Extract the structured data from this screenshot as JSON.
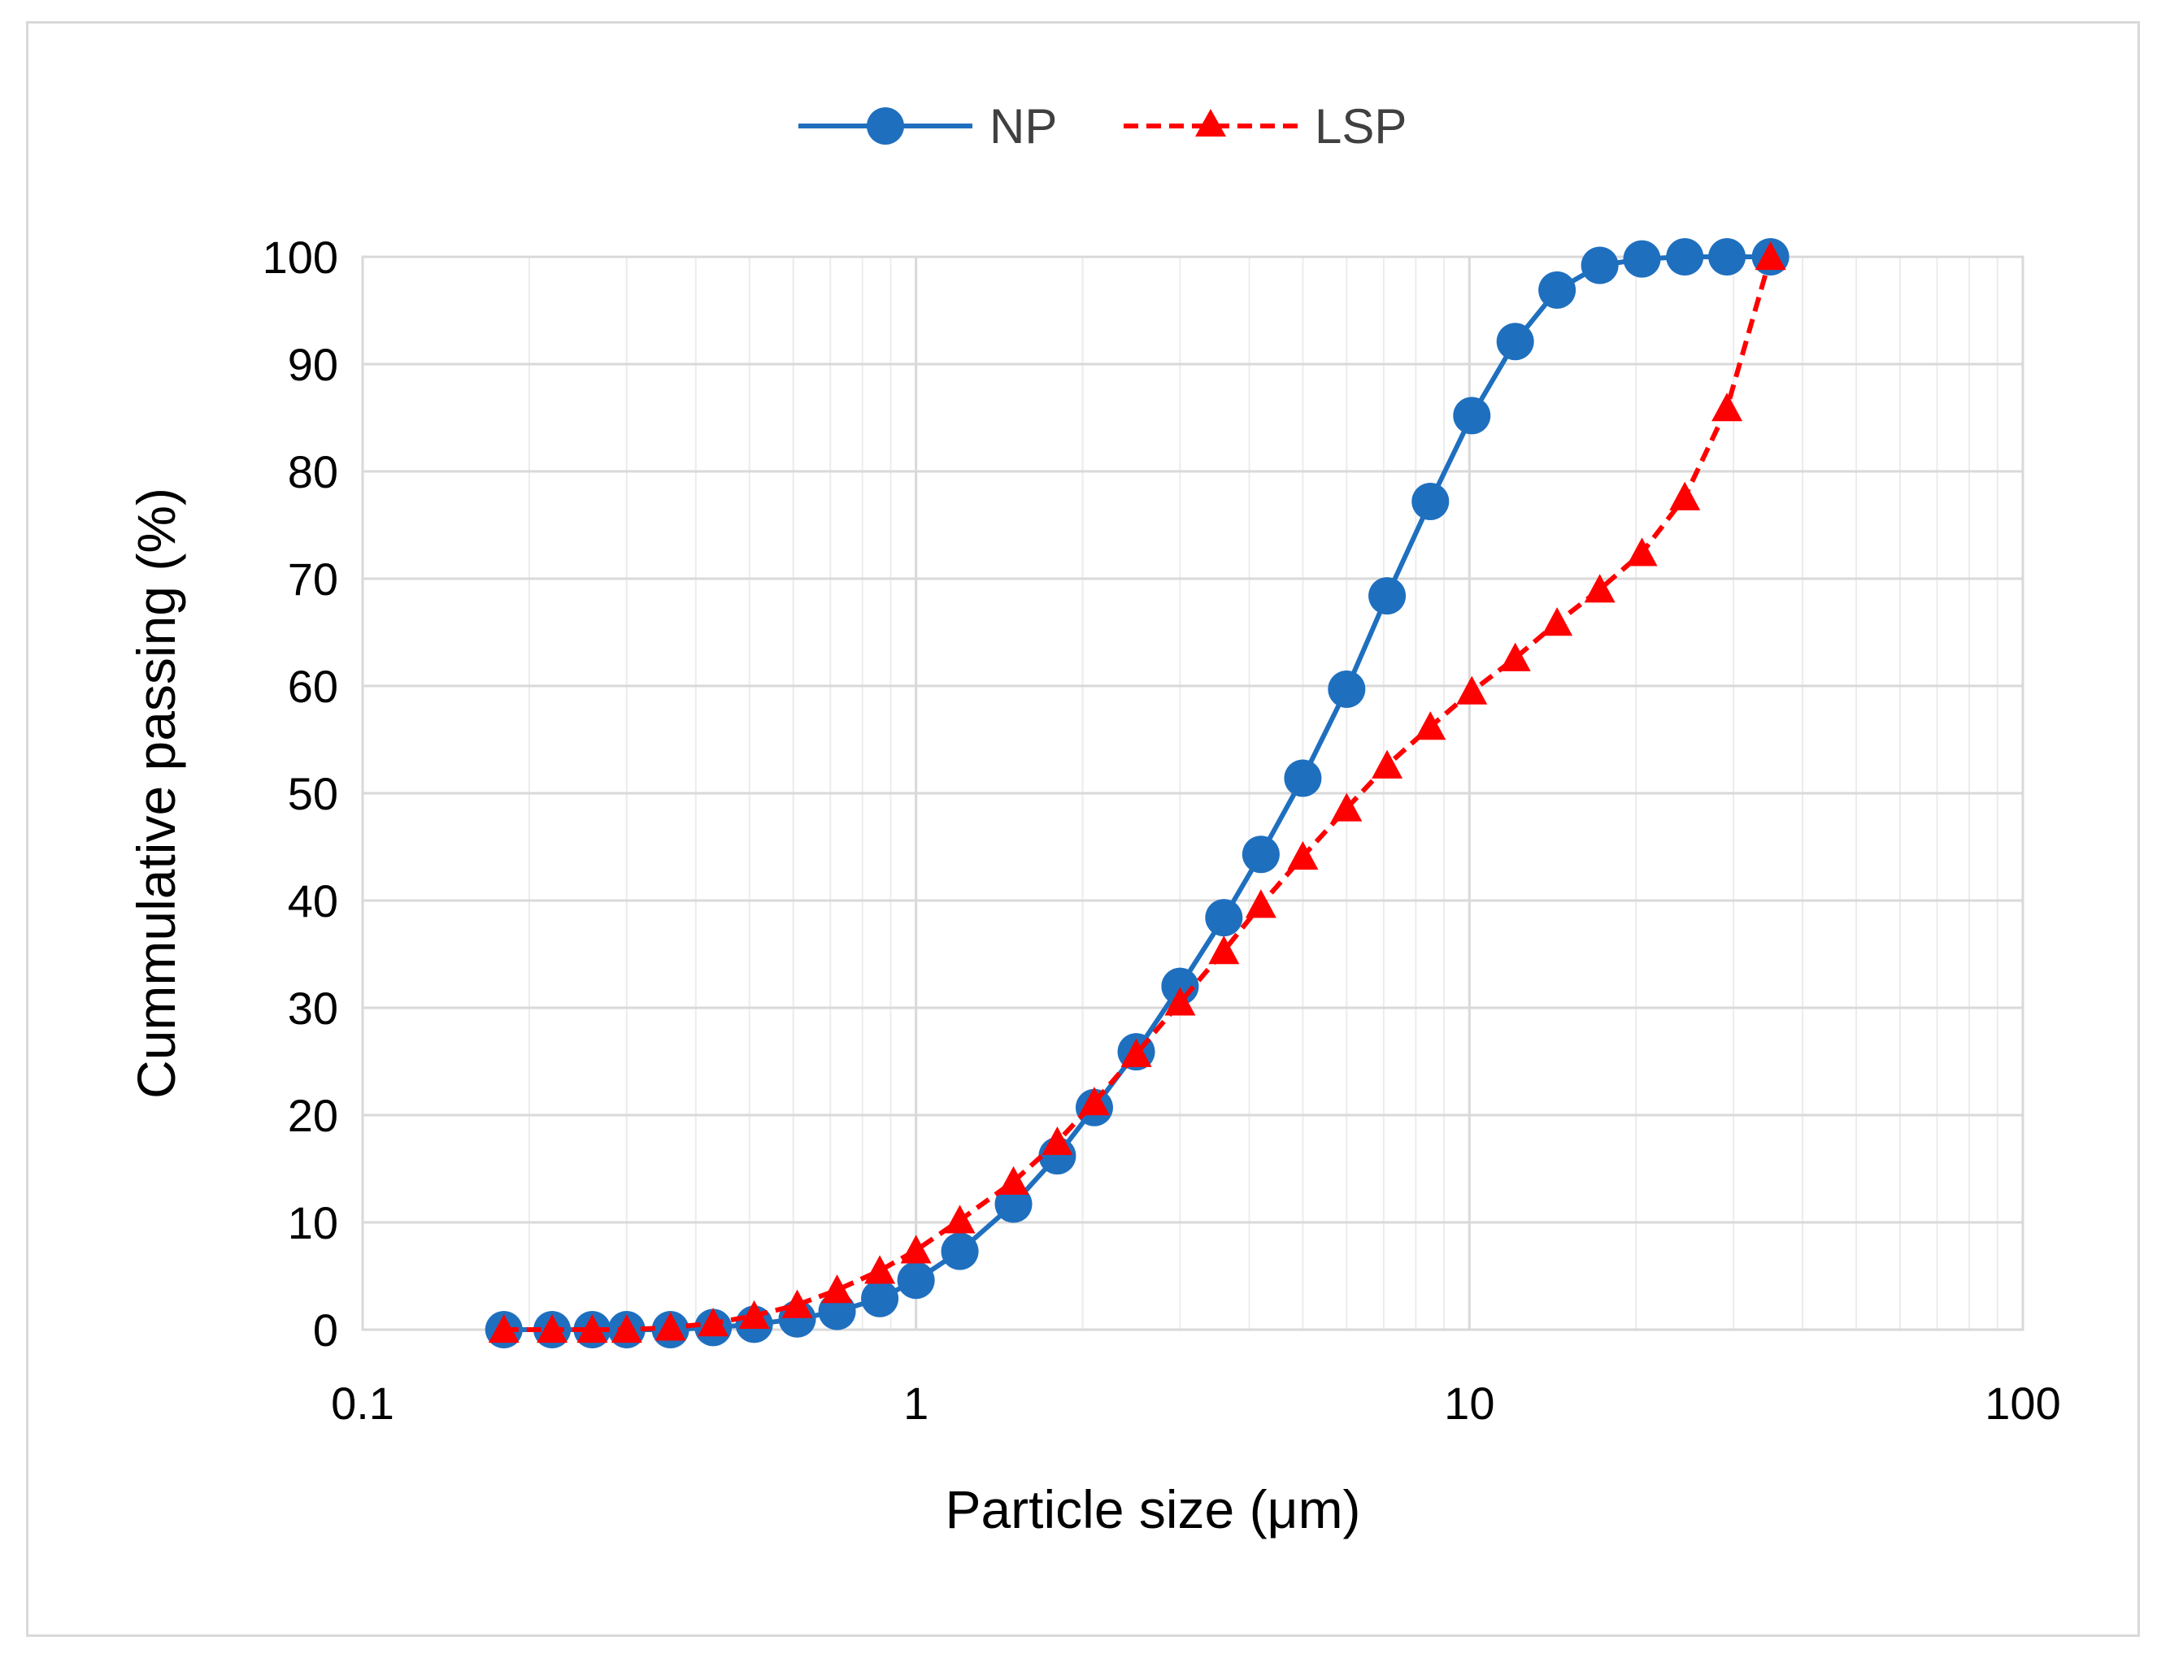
{
  "chart_data": {
    "type": "line",
    "title": "",
    "xlabel": "Particle size (μm)",
    "ylabel": "Cummulative passing (%)",
    "xscale": "log",
    "xlim": [
      0.1,
      100
    ],
    "ylim": [
      0,
      100
    ],
    "xticks": [
      0.1,
      1,
      10,
      100
    ],
    "xtick_labels": [
      "0.1",
      "1",
      "10",
      "100"
    ],
    "yticks": [
      0,
      10,
      20,
      30,
      40,
      50,
      60,
      70,
      80,
      90,
      100
    ],
    "ytick_labels": [
      "0",
      "10",
      "20",
      "30",
      "40",
      "50",
      "60",
      "70",
      "80",
      "90",
      "100"
    ],
    "grid": true,
    "legend_position": "top-center",
    "series": [
      {
        "name": "NP",
        "color": "#1f6fbf",
        "line_style": "solid",
        "marker": "circle",
        "x": [
          0.18,
          0.22,
          0.26,
          0.3,
          0.36,
          0.43,
          0.51,
          0.61,
          0.72,
          0.86,
          1.0,
          1.2,
          1.5,
          1.8,
          2.1,
          2.5,
          3.0,
          3.6,
          4.2,
          5.0,
          6.0,
          7.1,
          8.5,
          10.1,
          12.1,
          14.4,
          17.2,
          20.5,
          24.5,
          29.2,
          35.0
        ],
        "y": [
          0.0,
          0.0,
          0.0,
          0.0,
          0.0,
          0.2,
          0.5,
          1.0,
          1.7,
          2.9,
          4.6,
          7.3,
          11.7,
          16.2,
          20.7,
          25.9,
          32.0,
          38.4,
          44.3,
          51.4,
          59.7,
          68.4,
          77.2,
          85.2,
          92.1,
          96.9,
          99.2,
          99.8,
          100.0,
          100.0,
          100.0
        ]
      },
      {
        "name": "LSP",
        "color": "#ff0000",
        "line_style": "dashed",
        "marker": "triangle",
        "x": [
          0.18,
          0.22,
          0.26,
          0.3,
          0.36,
          0.43,
          0.51,
          0.61,
          0.72,
          0.86,
          1.0,
          1.2,
          1.5,
          1.8,
          2.1,
          2.5,
          3.0,
          3.6,
          4.2,
          5.0,
          6.0,
          7.1,
          8.5,
          10.1,
          12.1,
          14.4,
          17.2,
          20.5,
          24.5,
          29.2,
          35.0
        ],
        "y": [
          0.0,
          0.0,
          0.0,
          0.0,
          0.2,
          0.6,
          1.3,
          2.3,
          3.7,
          5.5,
          7.4,
          10.2,
          13.8,
          17.5,
          21.2,
          25.7,
          30.5,
          35.3,
          39.6,
          44.1,
          48.6,
          52.6,
          56.2,
          59.5,
          62.6,
          65.9,
          69.0,
          72.4,
          77.6,
          85.9,
          100.0
        ]
      }
    ]
  }
}
